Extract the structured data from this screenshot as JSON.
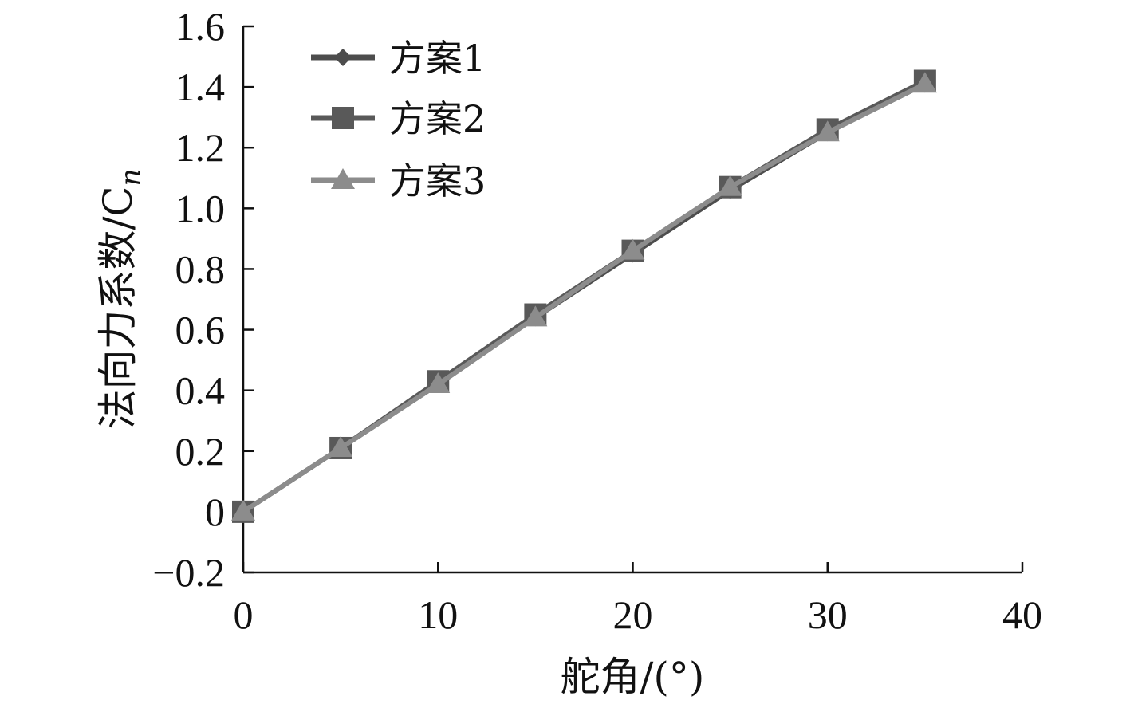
{
  "chart_data": {
    "type": "line",
    "xlabel": "舵角/(°)",
    "ylabel_main": "法向力系数/C",
    "ylabel_sub": "n",
    "xlim": [
      0,
      40
    ],
    "ylim": [
      -0.2,
      1.6
    ],
    "xticks": [
      0,
      10,
      20,
      30,
      40
    ],
    "xtick_labels": [
      "0",
      "10",
      "20",
      "30",
      "40"
    ],
    "yticks": [
      -0.2,
      0,
      0.2,
      0.4,
      0.6,
      0.8,
      1.0,
      1.2,
      1.4,
      1.6
    ],
    "ytick_labels": [
      "−0.2",
      "0",
      "0.2",
      "0.4",
      "0.6",
      "0.8",
      "1.0",
      "1.2",
      "1.4",
      "1.6"
    ],
    "grid": false,
    "legend_position": "top-left",
    "x": [
      0,
      5,
      10,
      15,
      20,
      25,
      30,
      35
    ],
    "series": [
      {
        "name": "方案1",
        "marker": "diamond",
        "color": "#4d4d4d",
        "values": [
          0,
          0.21,
          0.42,
          0.64,
          0.85,
          1.06,
          1.25,
          1.41
        ]
      },
      {
        "name": "方案2",
        "marker": "square",
        "color": "#595959",
        "values": [
          0,
          0.21,
          0.43,
          0.65,
          0.86,
          1.07,
          1.26,
          1.42
        ]
      },
      {
        "name": "方案3",
        "marker": "triangle",
        "color": "#8c8c8c",
        "values": [
          0,
          0.21,
          0.42,
          0.64,
          0.86,
          1.07,
          1.25,
          1.41
        ]
      }
    ]
  }
}
